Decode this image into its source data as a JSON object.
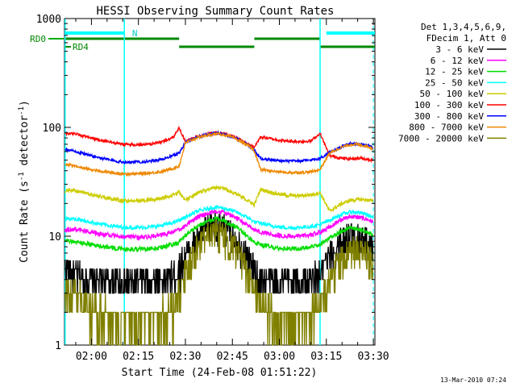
{
  "chart_data": {
    "type": "line",
    "title": "HESSI Observing Summary Count Rates",
    "xlabel": "Start Time (24-Feb-08 01:51:22)",
    "ylabel_main": "Count Rate (s",
    "ylabel_sup1": "-1",
    "ylabel_mid": " detector",
    "ylabel_sup2": "-1",
    "ylabel_end": ")",
    "yscale": "log",
    "ylim": [
      1,
      1000
    ],
    "xlim_min": [
      111.4,
      210.5
    ],
    "ytick_labels": [
      "1",
      "10",
      "100",
      "1000"
    ],
    "xtick_labels": [
      "02:00",
      "02:15",
      "02:30",
      "02:45",
      "03:00",
      "03:15",
      "03:30"
    ],
    "xtick_values_min": [
      120,
      135,
      150,
      165,
      180,
      195,
      210
    ],
    "footer": "13-Mar-2010 07:24",
    "legend_header": [
      "Det 1,3,4,5,6,9,",
      "FDecim 1, Att 0"
    ],
    "legend_position": "right",
    "attenuator_labels": {
      "n": "N",
      "rd0": "RD0",
      "rd4": "RD4"
    },
    "night_bars": [
      [
        111.4,
        130.5
      ],
      [
        195,
        210.5
      ]
    ],
    "decimation_segments": [
      [
        111.4,
        148
      ],
      [
        148,
        172
      ],
      [
        172,
        193
      ],
      [
        193,
        210.5
      ]
    ],
    "saa_lines_min": [
      111.6,
      130.5,
      193.0
    ],
    "saa_dashed_min": [
      130.5,
      210.0
    ],
    "series": [
      {
        "name": "3 - 6 keV",
        "color": "#000000",
        "points": [
          [
            111.6,
            5.2
          ],
          [
            114,
            4.6
          ],
          [
            118,
            4.2
          ],
          [
            122,
            4.0
          ],
          [
            126,
            3.9
          ],
          [
            130,
            3.8
          ],
          [
            134,
            3.8
          ],
          [
            138,
            3.8
          ],
          [
            142,
            3.9
          ],
          [
            146,
            4.4
          ],
          [
            148,
            5.0
          ],
          [
            150,
            6.6
          ],
          [
            154,
            9.6
          ],
          [
            158,
            12.4
          ],
          [
            160,
            12.8
          ],
          [
            162,
            12.0
          ],
          [
            166,
            9.5
          ],
          [
            170,
            6.5
          ],
          [
            172,
            4.8
          ],
          [
            174,
            4.2
          ],
          [
            178,
            3.8
          ],
          [
            182,
            3.8
          ],
          [
            186,
            3.8
          ],
          [
            190,
            4.0
          ],
          [
            193,
            4.5
          ],
          [
            196,
            6.5
          ],
          [
            200,
            9.2
          ],
          [
            203,
            10.2
          ],
          [
            206,
            9.6
          ],
          [
            208,
            8.8
          ],
          [
            210,
            7.5
          ]
        ]
      },
      {
        "name": "6 - 12 keV",
        "color": "#ff00ff",
        "points": [
          [
            111.6,
            11.5
          ],
          [
            114,
            11.6
          ],
          [
            118,
            11.2
          ],
          [
            122,
            10.6
          ],
          [
            126,
            10.2
          ],
          [
            130,
            9.9
          ],
          [
            134,
            9.8
          ],
          [
            138,
            9.9
          ],
          [
            142,
            10.2
          ],
          [
            146,
            10.9
          ],
          [
            148,
            11.4
          ],
          [
            150,
            12.6
          ],
          [
            154,
            15.0
          ],
          [
            158,
            16.6
          ],
          [
            160,
            16.8
          ],
          [
            162,
            16.6
          ],
          [
            166,
            15.0
          ],
          [
            170,
            12.6
          ],
          [
            172,
            11.4
          ],
          [
            174,
            11.0
          ],
          [
            178,
            10.3
          ],
          [
            182,
            10.0
          ],
          [
            186,
            10.0
          ],
          [
            190,
            10.3
          ],
          [
            193,
            10.8
          ],
          [
            196,
            12.2
          ],
          [
            200,
            14.3
          ],
          [
            203,
            15.2
          ],
          [
            206,
            14.8
          ],
          [
            208,
            14.3
          ],
          [
            210,
            13.5
          ]
        ]
      },
      {
        "name": "12 - 25 keV",
        "color": "#00dd00",
        "points": [
          [
            111.6,
            9.0
          ],
          [
            114,
            9.0
          ],
          [
            118,
            8.6
          ],
          [
            122,
            8.2
          ],
          [
            126,
            7.9
          ],
          [
            130,
            7.6
          ],
          [
            134,
            7.6
          ],
          [
            138,
            7.7
          ],
          [
            142,
            7.9
          ],
          [
            146,
            8.4
          ],
          [
            148,
            8.8
          ],
          [
            150,
            10.2
          ],
          [
            154,
            12.4
          ],
          [
            158,
            14.0
          ],
          [
            160,
            14.4
          ],
          [
            162,
            14.0
          ],
          [
            166,
            12.3
          ],
          [
            170,
            10.0
          ],
          [
            172,
            8.8
          ],
          [
            174,
            8.4
          ],
          [
            178,
            7.9
          ],
          [
            182,
            7.7
          ],
          [
            186,
            7.7
          ],
          [
            190,
            7.9
          ],
          [
            193,
            8.4
          ],
          [
            196,
            9.6
          ],
          [
            200,
            11.2
          ],
          [
            203,
            12.0
          ],
          [
            206,
            11.5
          ],
          [
            208,
            11.0
          ],
          [
            210,
            10.2
          ]
        ]
      },
      {
        "name": "25 - 50 keV",
        "color": "#00ffff",
        "points": [
          [
            111.6,
            14.5
          ],
          [
            114,
            14.5
          ],
          [
            118,
            13.8
          ],
          [
            122,
            13.1
          ],
          [
            126,
            12.5
          ],
          [
            130,
            12.1
          ],
          [
            134,
            12.0
          ],
          [
            138,
            12.1
          ],
          [
            142,
            12.5
          ],
          [
            146,
            13.3
          ],
          [
            148,
            14.0
          ],
          [
            150,
            15.0
          ],
          [
            154,
            17.0
          ],
          [
            158,
            18.2
          ],
          [
            160,
            18.5
          ],
          [
            162,
            18.2
          ],
          [
            166,
            16.8
          ],
          [
            170,
            14.8
          ],
          [
            172,
            13.5
          ],
          [
            174,
            13.2
          ],
          [
            178,
            12.4
          ],
          [
            182,
            12.0
          ],
          [
            186,
            12.0
          ],
          [
            190,
            12.3
          ],
          [
            193,
            12.8
          ],
          [
            196,
            14.0
          ],
          [
            200,
            16.0
          ],
          [
            203,
            16.8
          ],
          [
            206,
            16.4
          ],
          [
            208,
            15.8
          ],
          [
            210,
            14.8
          ]
        ]
      },
      {
        "name": "50 - 100 keV",
        "color": "#cccc00",
        "points": [
          [
            111.6,
            26.0
          ],
          [
            114,
            26.5
          ],
          [
            118,
            25.0
          ],
          [
            122,
            23.5
          ],
          [
            126,
            22.2
          ],
          [
            130,
            21.2
          ],
          [
            134,
            21.0
          ],
          [
            138,
            21.4
          ],
          [
            142,
            22.2
          ],
          [
            146,
            23.8
          ],
          [
            148,
            25.2
          ],
          [
            150,
            21.5
          ],
          [
            154,
            25.0
          ],
          [
            158,
            27.5
          ],
          [
            160,
            28.0
          ],
          [
            162,
            27.5
          ],
          [
            166,
            24.8
          ],
          [
            170,
            21.2
          ],
          [
            172,
            19.5
          ],
          [
            174,
            27.0
          ],
          [
            178,
            25.0
          ],
          [
            182,
            23.8
          ],
          [
            186,
            23.5
          ],
          [
            190,
            24.0
          ],
          [
            193,
            25.2
          ],
          [
            196,
            17.0
          ],
          [
            200,
            20.0
          ],
          [
            203,
            21.5
          ],
          [
            206,
            21.8
          ],
          [
            208,
            21.5
          ],
          [
            210,
            21.0
          ]
        ]
      },
      {
        "name": "100 - 300 keV",
        "color": "#ff0000",
        "points": [
          [
            111.6,
            88.0
          ],
          [
            114,
            88.0
          ],
          [
            118,
            83.0
          ],
          [
            122,
            77.0
          ],
          [
            126,
            73.0
          ],
          [
            130,
            70.0
          ],
          [
            134,
            69.0
          ],
          [
            138,
            70.0
          ],
          [
            142,
            73.0
          ],
          [
            146,
            80.0
          ],
          [
            148,
            98.0
          ],
          [
            150,
            75.0
          ],
          [
            154,
            83.0
          ],
          [
            158,
            88.0
          ],
          [
            160,
            89.0
          ],
          [
            162,
            88.0
          ],
          [
            166,
            81.0
          ],
          [
            170,
            70.0
          ],
          [
            172,
            66.0
          ],
          [
            174,
            82.0
          ],
          [
            178,
            78.0
          ],
          [
            182,
            75.0
          ],
          [
            186,
            74.0
          ],
          [
            190,
            75.0
          ],
          [
            193,
            88.0
          ],
          [
            196,
            55.0
          ],
          [
            200,
            52.0
          ],
          [
            203,
            51.5
          ],
          [
            206,
            52.0
          ],
          [
            208,
            51.0
          ],
          [
            210,
            50.0
          ]
        ]
      },
      {
        "name": "300 - 800 keV",
        "color": "#0000ff",
        "points": [
          [
            111.6,
            62.0
          ],
          [
            114,
            61.0
          ],
          [
            118,
            57.0
          ],
          [
            122,
            53.0
          ],
          [
            126,
            50.0
          ],
          [
            130,
            48.0
          ],
          [
            134,
            48.0
          ],
          [
            138,
            48.5
          ],
          [
            142,
            50.5
          ],
          [
            146,
            55.0
          ],
          [
            148,
            58.0
          ],
          [
            150,
            73.0
          ],
          [
            154,
            82.0
          ],
          [
            158,
            87.0
          ],
          [
            160,
            88.0
          ],
          [
            162,
            87.0
          ],
          [
            166,
            80.0
          ],
          [
            170,
            69.0
          ],
          [
            172,
            62.0
          ],
          [
            174,
            52.0
          ],
          [
            178,
            50.0
          ],
          [
            182,
            49.0
          ],
          [
            186,
            49.0
          ],
          [
            190,
            50.0
          ],
          [
            193,
            52.0
          ],
          [
            196,
            59.0
          ],
          [
            200,
            67.0
          ],
          [
            203,
            71.0
          ],
          [
            206,
            70.0
          ],
          [
            208,
            68.0
          ],
          [
            210,
            65.0
          ]
        ]
      },
      {
        "name": "800 - 7000 keV",
        "color": "#ee8800",
        "points": [
          [
            111.6,
            45.0
          ],
          [
            114,
            45.0
          ],
          [
            118,
            42.0
          ],
          [
            122,
            40.0
          ],
          [
            126,
            38.5
          ],
          [
            130,
            37.5
          ],
          [
            134,
            37.5
          ],
          [
            138,
            38.0
          ],
          [
            142,
            39.0
          ],
          [
            146,
            42.0
          ],
          [
            148,
            44.0
          ],
          [
            150,
            72.0
          ],
          [
            154,
            81.0
          ],
          [
            158,
            86.0
          ],
          [
            160,
            87.0
          ],
          [
            162,
            86.0
          ],
          [
            166,
            79.0
          ],
          [
            170,
            68.0
          ],
          [
            172,
            61.0
          ],
          [
            174,
            41.0
          ],
          [
            178,
            39.5
          ],
          [
            182,
            38.5
          ],
          [
            186,
            38.5
          ],
          [
            190,
            39.0
          ],
          [
            193,
            41.0
          ],
          [
            196,
            58.0
          ],
          [
            200,
            66.0
          ],
          [
            203,
            70.0
          ],
          [
            206,
            69.0
          ],
          [
            208,
            67.0
          ],
          [
            210,
            64.0
          ]
        ]
      },
      {
        "name": "7000 - 20000 keV",
        "color": "#808000",
        "points": [
          [
            111.6,
            3.3
          ],
          [
            114,
            3.0
          ],
          [
            118,
            2.4
          ],
          [
            122,
            2.0
          ],
          [
            126,
            1.9
          ],
          [
            130,
            1.7
          ],
          [
            134,
            1.7
          ],
          [
            138,
            1.8
          ],
          [
            142,
            1.9
          ],
          [
            146,
            2.2
          ],
          [
            148,
            2.8
          ],
          [
            150,
            4.5
          ],
          [
            154,
            7.8
          ],
          [
            158,
            10.5
          ],
          [
            160,
            11.0
          ],
          [
            162,
            10.2
          ],
          [
            166,
            7.8
          ],
          [
            170,
            4.6
          ],
          [
            172,
            3.2
          ],
          [
            174,
            2.4
          ],
          [
            178,
            1.9
          ],
          [
            182,
            1.7
          ],
          [
            186,
            1.7
          ],
          [
            190,
            1.9
          ],
          [
            193,
            2.3
          ],
          [
            196,
            4.0
          ],
          [
            200,
            6.4
          ],
          [
            203,
            7.6
          ],
          [
            206,
            7.2
          ],
          [
            208,
            6.6
          ],
          [
            210,
            5.6
          ]
        ]
      }
    ]
  }
}
